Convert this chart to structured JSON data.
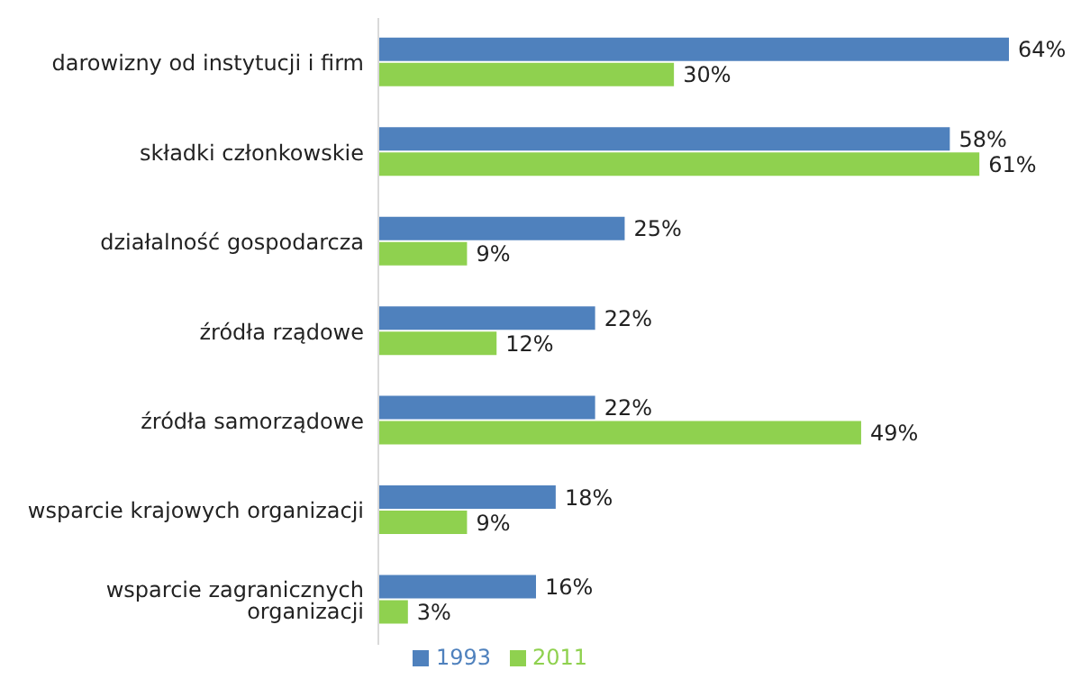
{
  "chart_data": {
    "type": "bar",
    "orientation": "horizontal",
    "categories": [
      "darowizny od instytucji i firm",
      "składki członkowskie",
      "działalność gospodarcza",
      "źródła rządowe",
      "źródła samorządowe",
      "wsparcie krajowych organizacji",
      "wsparcie zagranicznych organizacji"
    ],
    "series": [
      {
        "name": "1993",
        "color": "#4f81bd",
        "values": [
          64,
          58,
          25,
          22,
          22,
          18,
          16
        ],
        "value_labels": [
          "64%",
          "58%",
          "25%",
          "22%",
          "22%",
          "18%",
          "16%"
        ]
      },
      {
        "name": "2011",
        "color": "#8fd14f",
        "values": [
          30,
          61,
          9,
          12,
          49,
          9,
          3
        ],
        "value_labels": [
          "30%",
          "61%",
          "9%",
          "12%",
          "49%",
          "9%",
          "3%"
        ]
      }
    ],
    "legend": "bottom",
    "grid": false
  }
}
